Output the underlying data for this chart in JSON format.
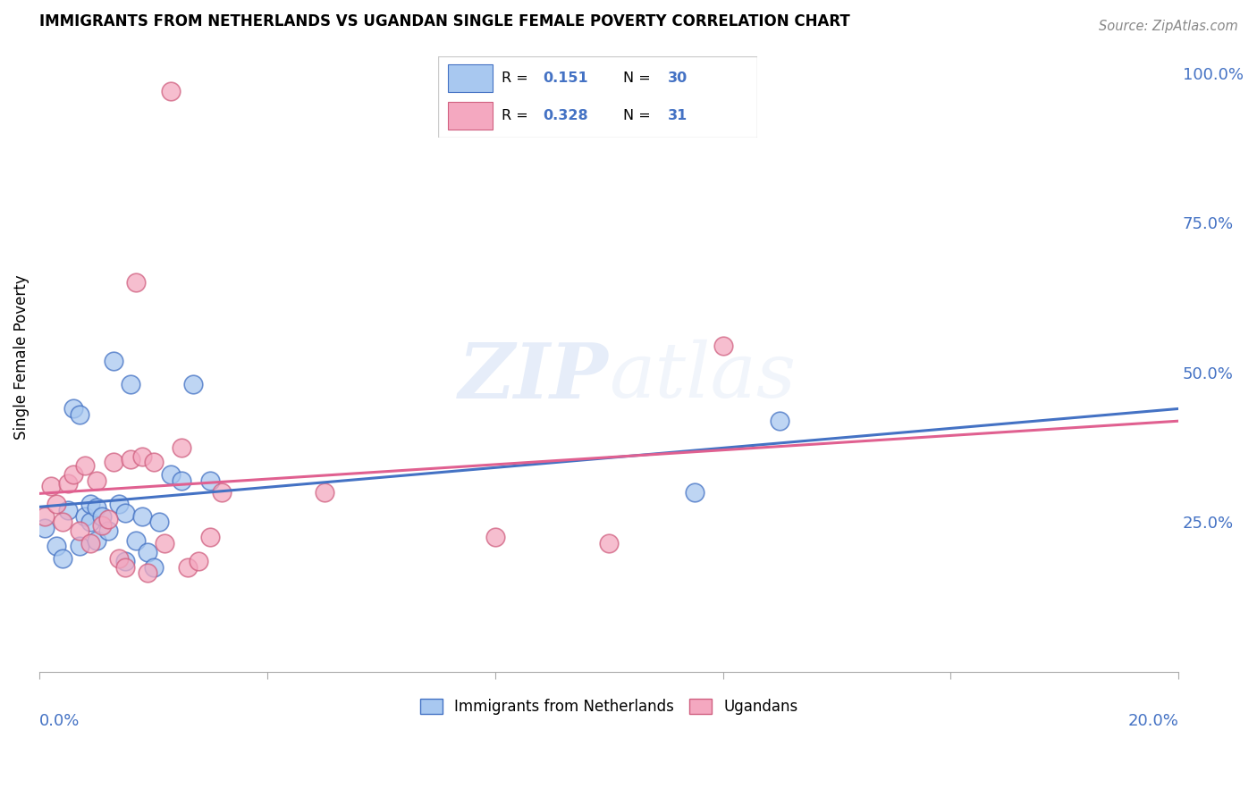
{
  "title": "IMMIGRANTS FROM NETHERLANDS VS UGANDAN SINGLE FEMALE POVERTY CORRELATION CHART",
  "source": "Source: ZipAtlas.com",
  "ylabel": "Single Female Poverty",
  "legend_label1": "Immigrants from Netherlands",
  "legend_label2": "Ugandans",
  "R1": "0.151",
  "N1": "30",
  "R2": "0.328",
  "N2": "31",
  "blue_color": "#A8C8F0",
  "pink_color": "#F4A8C0",
  "blue_line_color": "#4472C4",
  "pink_line_color": "#E06090",
  "blue_edge_color": "#4472C4",
  "pink_edge_color": "#D06080",
  "background_color": "#FFFFFF",
  "grid_color": "#CCCCCC",
  "blue_scatter_x": [
    0.001,
    0.003,
    0.004,
    0.005,
    0.006,
    0.007,
    0.007,
    0.008,
    0.009,
    0.009,
    0.01,
    0.01,
    0.011,
    0.012,
    0.013,
    0.014,
    0.015,
    0.015,
    0.016,
    0.017,
    0.018,
    0.019,
    0.02,
    0.021,
    0.023,
    0.025,
    0.027,
    0.03,
    0.115,
    0.13
  ],
  "blue_scatter_y": [
    0.24,
    0.21,
    0.19,
    0.27,
    0.44,
    0.43,
    0.21,
    0.26,
    0.25,
    0.28,
    0.275,
    0.22,
    0.26,
    0.235,
    0.52,
    0.28,
    0.185,
    0.265,
    0.48,
    0.22,
    0.26,
    0.2,
    0.175,
    0.25,
    0.33,
    0.32,
    0.48,
    0.32,
    0.3,
    0.42
  ],
  "pink_scatter_x": [
    0.001,
    0.002,
    0.003,
    0.004,
    0.005,
    0.006,
    0.007,
    0.008,
    0.009,
    0.01,
    0.011,
    0.012,
    0.013,
    0.014,
    0.015,
    0.016,
    0.017,
    0.018,
    0.019,
    0.02,
    0.022,
    0.023,
    0.025,
    0.026,
    0.028,
    0.03,
    0.032,
    0.05,
    0.08,
    0.1,
    0.12
  ],
  "pink_scatter_y": [
    0.26,
    0.31,
    0.28,
    0.25,
    0.315,
    0.33,
    0.235,
    0.345,
    0.215,
    0.32,
    0.245,
    0.255,
    0.35,
    0.19,
    0.175,
    0.355,
    0.65,
    0.36,
    0.165,
    0.35,
    0.215,
    0.97,
    0.375,
    0.175,
    0.185,
    0.225,
    0.3,
    0.3,
    0.225,
    0.215,
    0.545
  ],
  "xlim": [
    0.0,
    0.2
  ],
  "ylim": [
    0.0,
    1.05
  ],
  "right_yticks": [
    0.0,
    0.25,
    0.5,
    0.75,
    1.0
  ],
  "right_yticklabels": [
    "",
    "25.0%",
    "50.0%",
    "75.0%",
    "100.0%"
  ],
  "watermark": "ZIPatlas",
  "watermark_zip": "ZIP",
  "watermark_atlas": "atlas"
}
